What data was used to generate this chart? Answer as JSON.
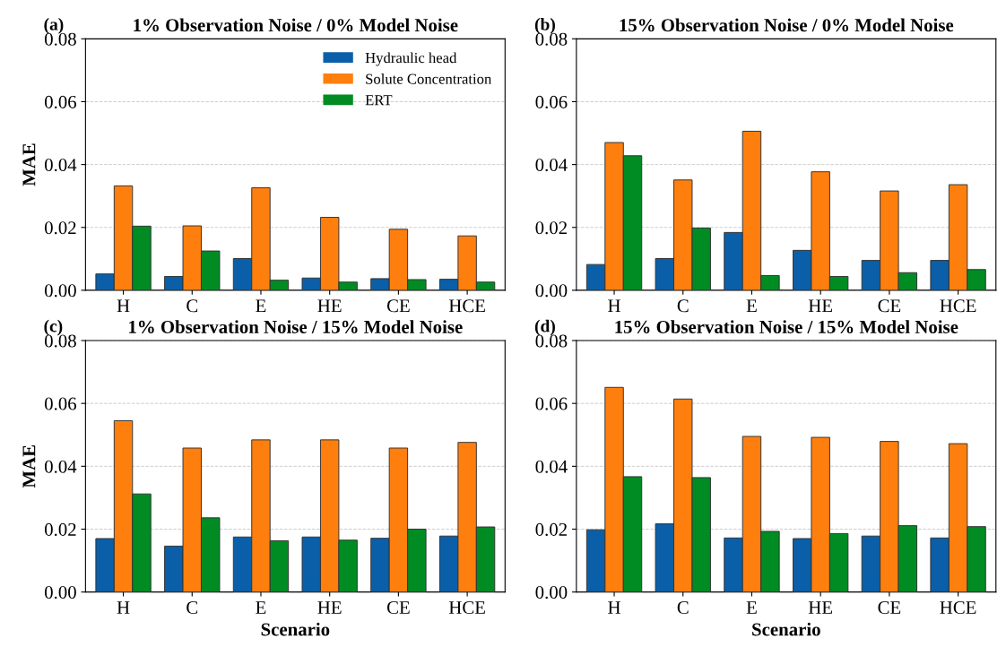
{
  "chart_data": [
    {
      "type": "bar",
      "title": "1% Observation Noise / 0% Model Noise",
      "ylabel": "MAE",
      "annotations": [
        "(a)"
      ],
      "categories": [
        "H",
        "C",
        "E",
        "HE",
        "CE",
        "HCE"
      ],
      "ylim": [
        0,
        0.08
      ],
      "yticks": [
        {
          "value": 0,
          "label": "0.00"
        },
        {
          "value": 0.02,
          "label": "0.02"
        },
        {
          "value": 0.04,
          "label": "0.04"
        },
        {
          "value": 0.06,
          "label": "0.06"
        },
        {
          "value": 0.08,
          "label": "0.08"
        }
      ],
      "grid": "y",
      "legend": "top right",
      "series": [
        {
          "name": "Hydraulic head",
          "color": "#0a5fa8",
          "values": [
            0.0052,
            0.0044,
            0.0101,
            0.0039,
            0.0037,
            0.0035
          ]
        },
        {
          "name": "Solute Concentration",
          "color": "#ff7f0e",
          "values": [
            0.0332,
            0.0205,
            0.0326,
            0.0232,
            0.0194,
            0.0173
          ]
        },
        {
          "name": "ERT",
          "color": "#008c23",
          "values": [
            0.0204,
            0.0125,
            0.0032,
            0.0026,
            0.0034,
            0.0026
          ]
        }
      ]
    },
    {
      "type": "bar",
      "title": "15% Observation Noise / 0% Model Noise",
      "annotations": [
        "(b)"
      ],
      "categories": [
        "H",
        "C",
        "E",
        "HE",
        "CE",
        "HCE"
      ],
      "ylim": [
        0,
        0.08
      ],
      "yticks": [
        {
          "value": 0,
          "label": "0.00"
        },
        {
          "value": 0.02,
          "label": "0.02"
        },
        {
          "value": 0.04,
          "label": "0.04"
        },
        {
          "value": 0.06,
          "label": "0.06"
        },
        {
          "value": 0.08,
          "label": "0.08"
        }
      ],
      "grid": "y",
      "series": [
        {
          "color": "#0a5fa8",
          "values": [
            0.0082,
            0.0101,
            0.0184,
            0.0127,
            0.0095,
            0.0095
          ]
        },
        {
          "color": "#ff7f0e",
          "values": [
            0.047,
            0.0351,
            0.0506,
            0.0377,
            0.0316,
            0.0336
          ]
        },
        {
          "color": "#008c23",
          "values": [
            0.0428,
            0.0198,
            0.0047,
            0.0044,
            0.0056,
            0.0066
          ]
        }
      ]
    },
    {
      "type": "bar",
      "title": "1% Observation Noise / 15% Model Noise",
      "ylabel": "MAE",
      "xlabel": "Scenario",
      "annotations": [
        "(c)"
      ],
      "categories": [
        "H",
        "C",
        "E",
        "HE",
        "CE",
        "HCE"
      ],
      "ylim": [
        0,
        0.08
      ],
      "yticks": [
        {
          "value": 0,
          "label": "0.00"
        },
        {
          "value": 0.02,
          "label": "0.02"
        },
        {
          "value": 0.04,
          "label": "0.04"
        },
        {
          "value": 0.06,
          "label": "0.06"
        },
        {
          "value": 0.08,
          "label": "0.08"
        }
      ],
      "grid": "y",
      "series": [
        {
          "color": "#0a5fa8",
          "values": [
            0.017,
            0.0146,
            0.0175,
            0.0175,
            0.0171,
            0.0178
          ]
        },
        {
          "color": "#ff7f0e",
          "values": [
            0.0545,
            0.0458,
            0.0484,
            0.0484,
            0.0458,
            0.0476
          ]
        },
        {
          "color": "#008c23",
          "values": [
            0.0312,
            0.0236,
            0.0163,
            0.0165,
            0.02,
            0.0207
          ]
        }
      ]
    },
    {
      "type": "bar",
      "title": "15% Observation Noise / 15% Model Noise",
      "xlabel": "Scenario",
      "annotations": [
        "(d)"
      ],
      "categories": [
        "H",
        "C",
        "E",
        "HE",
        "CE",
        "HCE"
      ],
      "ylim": [
        0,
        0.08
      ],
      "yticks": [
        {
          "value": 0,
          "label": "0.00"
        },
        {
          "value": 0.02,
          "label": "0.02"
        },
        {
          "value": 0.04,
          "label": "0.04"
        },
        {
          "value": 0.06,
          "label": "0.06"
        },
        {
          "value": 0.08,
          "label": "0.08"
        }
      ],
      "grid": "y",
      "series": [
        {
          "color": "#0a5fa8",
          "values": [
            0.0198,
            0.0217,
            0.0172,
            0.017,
            0.0178,
            0.0172
          ]
        },
        {
          "color": "#ff7f0e",
          "values": [
            0.0651,
            0.0614,
            0.0495,
            0.0492,
            0.0479,
            0.0472
          ]
        },
        {
          "color": "#008c23",
          "values": [
            0.0367,
            0.0364,
            0.0193,
            0.0186,
            0.0211,
            0.0208
          ]
        }
      ]
    }
  ]
}
